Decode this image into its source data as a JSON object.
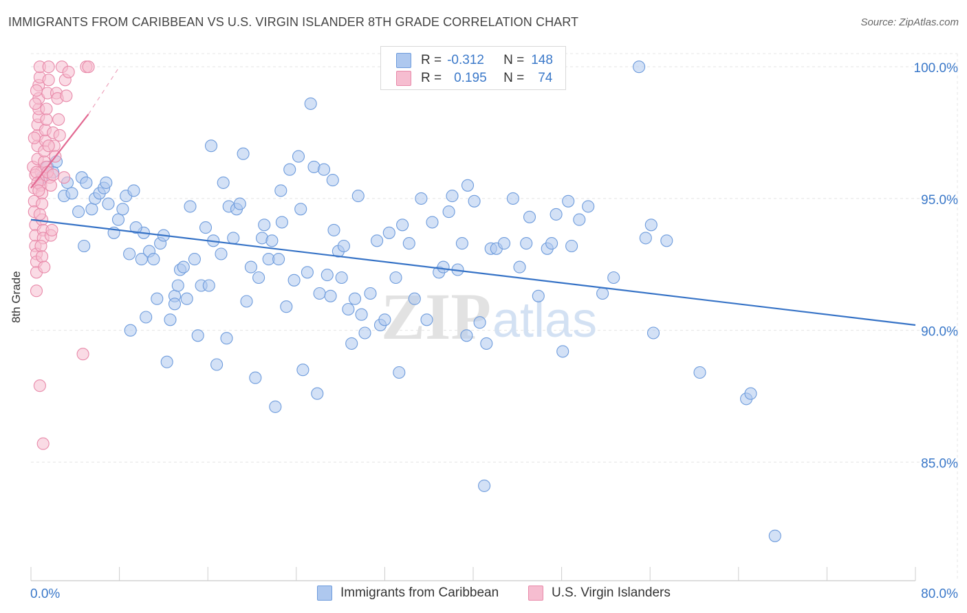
{
  "title": "IMMIGRANTS FROM CARIBBEAN VS U.S. VIRGIN ISLANDER 8TH GRADE CORRELATION CHART",
  "source": "Source: ZipAtlas.com",
  "watermark": {
    "zip": "ZIP",
    "atlas": "atlas"
  },
  "legend": {
    "r_label": "R =",
    "n_label": "N =",
    "rows": [
      {
        "r": "-0.312",
        "n": "148",
        "color": "#aec8ef",
        "border": "#6d9bdc"
      },
      {
        "r": "0.195",
        "n": "74",
        "color": "#f6bdd0",
        "border": "#e889a9"
      }
    ]
  },
  "bottom_legend": [
    {
      "label": "Immigrants from Caribbean",
      "color": "#aec8ef",
      "border": "#6d9bdc"
    },
    {
      "label": "U.S. Virgin Islanders",
      "color": "#f6bdd0",
      "border": "#e889a9"
    }
  ],
  "chart_data": {
    "type": "scatter",
    "title": "IMMIGRANTS FROM CARIBBEAN VS U.S. VIRGIN ISLANDER 8TH GRADE CORRELATION CHART",
    "xlabel": "",
    "ylabel": "8th Grade",
    "xlim": [
      0,
      80
    ],
    "ylim": [
      80.5,
      100.5
    ],
    "x_tick_labels": [
      "0.0%",
      "80.0%"
    ],
    "y_ticks": [
      100,
      95,
      90,
      85
    ],
    "y_tick_labels": [
      "100.0%",
      "95.0%",
      "90.0%",
      "85.0%"
    ],
    "grid": true,
    "legend_position": "top-center",
    "series": [
      {
        "name": "Immigrants from Caribbean",
        "color": "#6d9bdc",
        "fill": "#aec8ef",
        "trend": {
          "x": [
            0,
            80
          ],
          "y": [
            94.2,
            90.2
          ],
          "color": "#3572c6"
        },
        "points": [
          [
            1.0,
            95.8
          ],
          [
            1.5,
            96.2
          ],
          [
            2.0,
            96.0
          ],
          [
            2.3,
            96.4
          ],
          [
            3.3,
            95.6
          ],
          [
            3.0,
            95.1
          ],
          [
            3.7,
            95.2
          ],
          [
            4.3,
            94.5
          ],
          [
            4.6,
            95.8
          ],
          [
            4.8,
            93.2
          ],
          [
            5.0,
            95.6
          ],
          [
            5.5,
            94.6
          ],
          [
            5.8,
            95.0
          ],
          [
            6.2,
            95.2
          ],
          [
            6.6,
            95.4
          ],
          [
            6.8,
            95.6
          ],
          [
            7.0,
            94.8
          ],
          [
            7.5,
            93.7
          ],
          [
            7.9,
            94.2
          ],
          [
            8.3,
            94.6
          ],
          [
            8.6,
            95.1
          ],
          [
            8.9,
            92.9
          ],
          [
            9.3,
            95.3
          ],
          [
            9.0,
            90.0
          ],
          [
            10.0,
            92.7
          ],
          [
            10.2,
            93.7
          ],
          [
            10.4,
            90.5
          ],
          [
            10.7,
            93.0
          ],
          [
            11.1,
            92.7
          ],
          [
            11.4,
            91.2
          ],
          [
            11.7,
            93.3
          ],
          [
            12.0,
            93.6
          ],
          [
            12.3,
            88.8
          ],
          [
            12.6,
            90.4
          ],
          [
            13.0,
            91.3
          ],
          [
            13.3,
            91.7
          ],
          [
            13.5,
            92.3
          ],
          [
            13.8,
            92.4
          ],
          [
            14.1,
            91.2
          ],
          [
            14.4,
            94.7
          ],
          [
            14.8,
            92.7
          ],
          [
            15.1,
            89.8
          ],
          [
            15.4,
            91.7
          ],
          [
            15.8,
            93.9
          ],
          [
            16.1,
            91.7
          ],
          [
            16.5,
            93.4
          ],
          [
            16.8,
            88.7
          ],
          [
            17.2,
            92.9
          ],
          [
            17.4,
            95.6
          ],
          [
            17.7,
            89.7
          ],
          [
            17.9,
            94.7
          ],
          [
            18.3,
            93.5
          ],
          [
            18.6,
            94.6
          ],
          [
            18.9,
            94.8
          ],
          [
            19.2,
            96.7
          ],
          [
            19.5,
            91.1
          ],
          [
            19.9,
            92.4
          ],
          [
            20.3,
            88.2
          ],
          [
            20.6,
            92.0
          ],
          [
            20.9,
            93.5
          ],
          [
            21.1,
            94.0
          ],
          [
            21.5,
            92.7
          ],
          [
            21.8,
            93.4
          ],
          [
            22.1,
            87.1
          ],
          [
            22.4,
            92.7
          ],
          [
            22.7,
            94.1
          ],
          [
            23.1,
            90.9
          ],
          [
            23.4,
            96.1
          ],
          [
            23.8,
            91.9
          ],
          [
            24.2,
            96.6
          ],
          [
            24.4,
            94.6
          ],
          [
            24.6,
            88.5
          ],
          [
            25.0,
            92.2
          ],
          [
            25.3,
            98.6
          ],
          [
            25.6,
            96.2
          ],
          [
            25.9,
            87.6
          ],
          [
            26.1,
            91.4
          ],
          [
            26.5,
            96.1
          ],
          [
            26.8,
            92.1
          ],
          [
            27.1,
            91.3
          ],
          [
            27.4,
            93.8
          ],
          [
            27.8,
            93.0
          ],
          [
            28.1,
            92.0
          ],
          [
            28.3,
            93.2
          ],
          [
            28.7,
            90.8
          ],
          [
            29.0,
            89.5
          ],
          [
            29.3,
            91.2
          ],
          [
            29.6,
            95.1
          ],
          [
            29.9,
            90.6
          ],
          [
            30.2,
            89.9
          ],
          [
            30.7,
            91.4
          ],
          [
            31.3,
            93.4
          ],
          [
            31.6,
            90.2
          ],
          [
            32.0,
            90.4
          ],
          [
            32.4,
            93.7
          ],
          [
            33.0,
            92.0
          ],
          [
            33.3,
            88.4
          ],
          [
            33.6,
            94.0
          ],
          [
            34.2,
            93.3
          ],
          [
            34.7,
            91.2
          ],
          [
            35.3,
            95.0
          ],
          [
            35.8,
            90.4
          ],
          [
            36.3,
            94.1
          ],
          [
            36.9,
            92.2
          ],
          [
            37.3,
            92.4
          ],
          [
            37.8,
            94.5
          ],
          [
            38.1,
            95.1
          ],
          [
            38.6,
            92.3
          ],
          [
            39.0,
            93.3
          ],
          [
            39.4,
            89.8
          ],
          [
            40.1,
            94.9
          ],
          [
            40.6,
            90.3
          ],
          [
            41.2,
            89.5
          ],
          [
            41.6,
            93.1
          ],
          [
            42.1,
            93.1
          ],
          [
            42.8,
            93.3
          ],
          [
            43.6,
            95.0
          ],
          [
            44.2,
            92.4
          ],
          [
            44.8,
            93.3
          ],
          [
            45.1,
            94.3
          ],
          [
            45.9,
            91.3
          ],
          [
            46.7,
            93.1
          ],
          [
            47.1,
            93.3
          ],
          [
            47.5,
            94.4
          ],
          [
            48.1,
            89.2
          ],
          [
            48.6,
            94.9
          ],
          [
            48.9,
            93.2
          ],
          [
            49.6,
            94.2
          ],
          [
            50.4,
            94.7
          ],
          [
            51.7,
            91.4
          ],
          [
            52.7,
            92.0
          ],
          [
            55.0,
            100.0
          ],
          [
            55.6,
            93.5
          ],
          [
            56.1,
            94.0
          ],
          [
            56.3,
            89.9
          ],
          [
            57.5,
            93.4
          ],
          [
            60.5,
            88.4
          ],
          [
            64.7,
            87.4
          ],
          [
            65.1,
            87.6
          ],
          [
            67.3,
            82.2
          ],
          [
            41.0,
            84.1
          ],
          [
            36.0,
            100.0
          ],
          [
            27.3,
            95.7
          ],
          [
            13.0,
            91.0
          ],
          [
            22.6,
            95.3
          ],
          [
            39.5,
            95.5
          ],
          [
            9.5,
            93.9
          ],
          [
            16.3,
            97.0
          ]
        ]
      },
      {
        "name": "U.S. Virgin Islanders",
        "color": "#e889a9",
        "fill": "#f6bdd0",
        "trend": {
          "x": [
            0,
            5.2
          ],
          "y": [
            95.4,
            98.2
          ],
          "color": "#e26891",
          "dash_to": [
            8.0,
            100.0
          ]
        },
        "points": [
          [
            0.2,
            96.2
          ],
          [
            0.3,
            95.4
          ],
          [
            0.3,
            94.9
          ],
          [
            0.3,
            94.5
          ],
          [
            0.4,
            94.0
          ],
          [
            0.4,
            93.6
          ],
          [
            0.4,
            93.2
          ],
          [
            0.5,
            92.9
          ],
          [
            0.5,
            92.6
          ],
          [
            0.5,
            92.2
          ],
          [
            0.5,
            91.5
          ],
          [
            0.6,
            96.5
          ],
          [
            0.6,
            97.0
          ],
          [
            0.6,
            97.4
          ],
          [
            0.6,
            97.8
          ],
          [
            0.7,
            98.1
          ],
          [
            0.7,
            98.4
          ],
          [
            0.7,
            98.8
          ],
          [
            0.7,
            99.3
          ],
          [
            0.8,
            99.6
          ],
          [
            0.8,
            100.0
          ],
          [
            0.9,
            96.0
          ],
          [
            0.9,
            95.7
          ],
          [
            0.9,
            95.5
          ],
          [
            1.0,
            95.2
          ],
          [
            1.0,
            94.8
          ],
          [
            1.0,
            94.2
          ],
          [
            1.1,
            93.8
          ],
          [
            1.1,
            93.5
          ],
          [
            1.2,
            96.4
          ],
          [
            1.2,
            96.8
          ],
          [
            1.3,
            97.2
          ],
          [
            1.3,
            97.6
          ],
          [
            1.4,
            98.0
          ],
          [
            1.4,
            98.4
          ],
          [
            1.5,
            99.0
          ],
          [
            1.6,
            99.5
          ],
          [
            1.6,
            100.0
          ],
          [
            1.7,
            95.8
          ],
          [
            1.8,
            95.5
          ],
          [
            1.8,
            93.6
          ],
          [
            1.9,
            93.8
          ],
          [
            2.0,
            97.5
          ],
          [
            2.1,
            97.0
          ],
          [
            2.2,
            96.6
          ],
          [
            2.3,
            99.0
          ],
          [
            2.4,
            98.8
          ],
          [
            2.5,
            98.0
          ],
          [
            2.6,
            97.4
          ],
          [
            2.8,
            100.0
          ],
          [
            3.0,
            95.8
          ],
          [
            3.1,
            99.5
          ],
          [
            3.2,
            98.9
          ],
          [
            3.4,
            99.8
          ],
          [
            4.7,
            89.1
          ],
          [
            5.0,
            100.0
          ],
          [
            5.2,
            100.0
          ],
          [
            0.8,
            87.9
          ],
          [
            1.1,
            85.7
          ],
          [
            0.4,
            95.9
          ],
          [
            0.5,
            96.0
          ],
          [
            0.6,
            95.6
          ],
          [
            0.7,
            95.3
          ],
          [
            0.8,
            94.4
          ],
          [
            0.9,
            93.2
          ],
          [
            1.0,
            92.8
          ],
          [
            1.2,
            92.4
          ],
          [
            1.4,
            96.2
          ],
          [
            1.5,
            96.0
          ],
          [
            1.6,
            97.0
          ],
          [
            0.3,
            97.3
          ],
          [
            0.4,
            98.6
          ],
          [
            0.5,
            99.1
          ],
          [
            2.0,
            95.9
          ]
        ]
      }
    ]
  }
}
